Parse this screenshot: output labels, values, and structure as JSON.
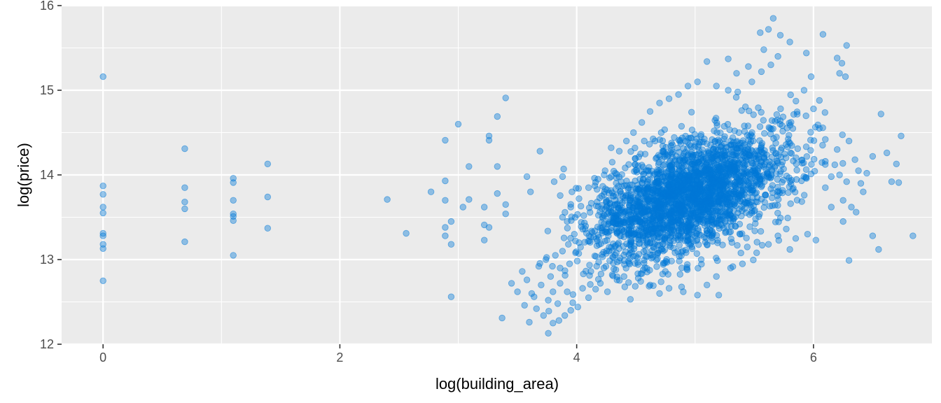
{
  "chart_data": {
    "type": "scatter",
    "title": "",
    "xlabel": "log(building_area)",
    "ylabel": "log(price)",
    "xlim": [
      -0.35,
      7.0
    ],
    "ylim": [
      12.0,
      16.0
    ],
    "x_ticks": [
      0,
      2,
      4,
      6
    ],
    "y_ticks": [
      12,
      13,
      14,
      15,
      16
    ],
    "x_tick_labels": [
      "0",
      "2",
      "4",
      "6"
    ],
    "y_tick_labels": [
      "12",
      "13",
      "14",
      "15",
      "16"
    ],
    "grid": true,
    "legend": "none",
    "colors": {
      "panel": "#EBEBEB",
      "grid": "#FFFFFF",
      "point": "#0078D7"
    },
    "series": [
      {
        "points": [
          [
            0.0,
            15.16
          ],
          [
            0.0,
            13.87
          ],
          [
            0.0,
            13.77
          ],
          [
            0.0,
            13.62
          ],
          [
            0.0,
            13.55
          ],
          [
            0.0,
            13.31
          ],
          [
            0.0,
            13.28
          ],
          [
            0.0,
            13.18
          ],
          [
            0.0,
            13.13
          ],
          [
            0.0,
            12.75
          ],
          [
            0.69,
            14.31
          ],
          [
            0.69,
            13.85
          ],
          [
            0.69,
            13.68
          ],
          [
            0.69,
            13.6
          ],
          [
            0.69,
            13.21
          ],
          [
            1.1,
            13.96
          ],
          [
            1.1,
            13.91
          ],
          [
            1.1,
            13.7
          ],
          [
            1.1,
            13.54
          ],
          [
            1.1,
            13.51
          ],
          [
            1.1,
            13.46
          ],
          [
            1.1,
            13.05
          ],
          [
            1.39,
            14.13
          ],
          [
            1.39,
            13.74
          ],
          [
            1.39,
            13.37
          ],
          [
            2.4,
            13.71
          ],
          [
            2.56,
            13.31
          ],
          [
            2.77,
            13.8
          ],
          [
            2.89,
            14.41
          ],
          [
            2.89,
            13.93
          ],
          [
            2.89,
            13.7
          ],
          [
            2.89,
            13.38
          ],
          [
            2.89,
            13.28
          ],
          [
            2.94,
            13.45
          ],
          [
            2.94,
            13.18
          ],
          [
            2.94,
            12.56
          ],
          [
            3.0,
            14.6
          ],
          [
            3.04,
            13.62
          ],
          [
            3.09,
            14.1
          ],
          [
            3.09,
            13.71
          ],
          [
            3.22,
            13.62
          ],
          [
            3.22,
            13.41
          ],
          [
            3.22,
            13.23
          ],
          [
            3.26,
            14.46
          ],
          [
            3.26,
            14.41
          ],
          [
            3.26,
            13.38
          ],
          [
            3.33,
            14.69
          ],
          [
            3.33,
            14.1
          ],
          [
            3.33,
            13.78
          ],
          [
            3.37,
            12.31
          ],
          [
            3.4,
            14.91
          ],
          [
            3.4,
            13.65
          ],
          [
            3.4,
            13.54
          ],
          [
            3.58,
            13.98
          ],
          [
            3.61,
            13.8
          ],
          [
            3.69,
            14.28
          ],
          [
            3.76,
            12.13
          ],
          [
            3.81,
            13.92
          ],
          [
            3.89,
            14.07
          ],
          [
            3.96,
            13.8
          ],
          [
            4.01,
            12.44
          ],
          [
            4.06,
            13.52
          ],
          [
            5.95,
            13.3
          ],
          [
            6.02,
            13.23
          ],
          [
            6.15,
            13.98
          ],
          [
            6.25,
            13.45
          ],
          [
            6.3,
            12.99
          ],
          [
            6.4,
            13.9
          ],
          [
            6.5,
            13.28
          ],
          [
            6.55,
            13.12
          ],
          [
            6.57,
            14.72
          ],
          [
            6.62,
            14.26
          ],
          [
            6.66,
            13.92
          ],
          [
            6.7,
            14.13
          ],
          [
            6.72,
            13.91
          ],
          [
            6.74,
            14.46
          ],
          [
            6.84,
            13.28
          ],
          [
            6.08,
            15.66
          ],
          [
            6.28,
            15.53
          ],
          [
            6.2,
            15.38
          ],
          [
            6.24,
            15.32
          ],
          [
            5.66,
            15.85
          ],
          [
            5.55,
            15.68
          ],
          [
            5.62,
            15.72
          ],
          [
            5.72,
            15.65
          ],
          [
            5.8,
            15.57
          ],
          [
            5.58,
            15.48
          ],
          [
            5.7,
            15.4
          ],
          [
            5.94,
            15.44
          ],
          [
            5.28,
            15.37
          ],
          [
            5.1,
            15.34
          ],
          [
            5.45,
            15.28
          ],
          [
            5.35,
            15.2
          ],
          [
            5.98,
            15.16
          ],
          [
            6.22,
            15.2
          ],
          [
            6.27,
            15.16
          ],
          [
            5.92,
            15.0
          ],
          [
            6.05,
            14.88
          ],
          [
            6.0,
            14.78
          ],
          [
            6.05,
            14.55
          ],
          [
            6.1,
            14.42
          ],
          [
            6.2,
            14.3
          ],
          [
            6.18,
            14.12
          ],
          [
            6.22,
            14.0
          ],
          [
            6.1,
            13.85
          ],
          [
            6.15,
            13.62
          ],
          [
            6.3,
            14.4
          ],
          [
            6.35,
            14.18
          ],
          [
            6.38,
            14.05
          ],
          [
            6.42,
            13.8
          ],
          [
            6.25,
            13.7
          ],
          [
            6.32,
            13.62
          ],
          [
            6.36,
            13.56
          ],
          [
            6.28,
            13.92
          ],
          [
            6.45,
            14.02
          ],
          [
            6.5,
            14.22
          ],
          [
            5.85,
            13.25
          ],
          [
            5.8,
            13.12
          ],
          [
            5.7,
            13.28
          ],
          [
            5.62,
            13.18
          ],
          [
            5.52,
            13.08
          ],
          [
            5.4,
            12.95
          ],
          [
            5.3,
            12.9
          ],
          [
            5.18,
            12.8
          ],
          [
            5.1,
            12.7
          ],
          [
            5.2,
            12.58
          ],
          [
            5.02,
            12.58
          ],
          [
            4.9,
            12.62
          ],
          [
            4.78,
            12.66
          ],
          [
            4.7,
            12.6
          ],
          [
            4.62,
            12.7
          ],
          [
            4.52,
            12.78
          ],
          [
            4.4,
            12.8
          ],
          [
            4.3,
            12.82
          ],
          [
            4.2,
            12.72
          ],
          [
            4.1,
            12.55
          ],
          [
            3.95,
            12.4
          ],
          [
            3.9,
            12.34
          ],
          [
            3.85,
            12.28
          ],
          [
            3.8,
            12.25
          ],
          [
            3.72,
            12.34
          ],
          [
            3.66,
            12.42
          ],
          [
            3.6,
            12.26
          ],
          [
            3.56,
            12.46
          ],
          [
            3.62,
            12.6
          ],
          [
            3.7,
            12.7
          ],
          [
            3.78,
            12.8
          ],
          [
            3.86,
            12.9
          ],
          [
            3.94,
            12.95
          ],
          [
            3.99,
            13.08
          ],
          [
            4.02,
            13.2
          ],
          [
            3.98,
            13.3
          ],
          [
            3.92,
            13.45
          ],
          [
            3.88,
            13.5
          ],
          [
            3.95,
            13.62
          ],
          [
            4.02,
            13.72
          ],
          [
            4.1,
            13.85
          ],
          [
            4.18,
            13.95
          ],
          [
            4.24,
            14.05
          ],
          [
            4.3,
            14.15
          ],
          [
            4.36,
            14.28
          ],
          [
            4.42,
            14.4
          ],
          [
            4.48,
            14.5
          ],
          [
            4.55,
            14.62
          ],
          [
            4.62,
            14.75
          ],
          [
            4.7,
            14.85
          ],
          [
            4.78,
            14.9
          ],
          [
            4.86,
            14.95
          ],
          [
            4.94,
            15.05
          ],
          [
            5.02,
            15.1
          ],
          [
            5.18,
            15.05
          ],
          [
            5.28,
            15.0
          ],
          [
            5.36,
            14.98
          ],
          [
            5.48,
            15.1
          ],
          [
            5.56,
            15.22
          ],
          [
            5.64,
            15.3
          ],
          [
            3.45,
            12.72
          ],
          [
            3.5,
            12.62
          ],
          [
            3.54,
            12.86
          ],
          [
            3.58,
            12.76
          ],
          [
            3.64,
            12.56
          ],
          [
            3.68,
            12.92
          ],
          [
            3.74,
            13.0
          ],
          [
            3.82,
            13.05
          ],
          [
            3.88,
            13.1
          ],
          [
            3.93,
            13.18
          ],
          [
            3.92,
            12.62
          ],
          [
            3.86,
            12.72
          ],
          [
            3.8,
            12.62
          ],
          [
            3.76,
            12.52
          ],
          [
            3.84,
            12.48
          ],
          [
            4.05,
            12.66
          ],
          [
            4.12,
            12.86
          ],
          [
            4.16,
            12.65
          ],
          [
            4.26,
            12.62
          ],
          [
            4.34,
            12.76
          ]
        ],
        "cluster": {
          "count": 2600,
          "seed": 7,
          "center": [
            4.95,
            13.75
          ],
          "sd": [
            0.42,
            0.38
          ],
          "cov": 0.085,
          "xmin": 3.55,
          "xmax": 6.25,
          "ymin": 12.25,
          "ymax": 15.55
        }
      }
    ]
  }
}
